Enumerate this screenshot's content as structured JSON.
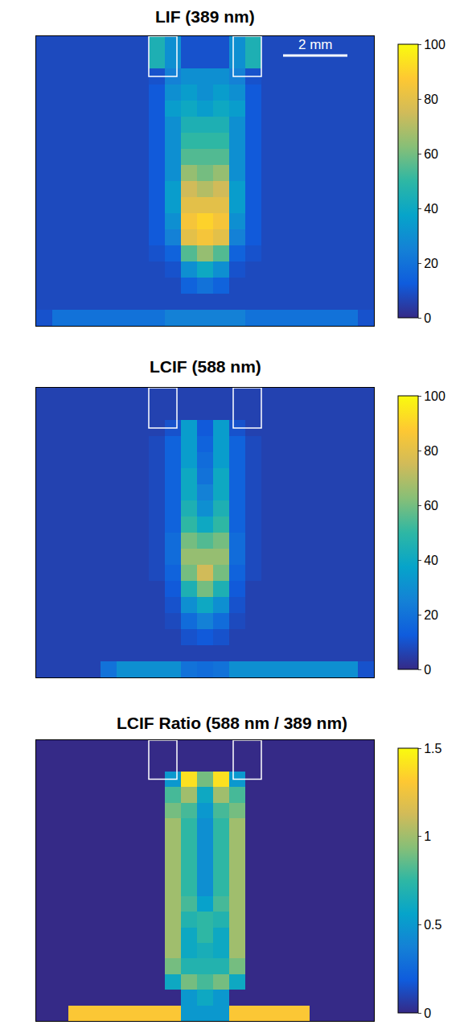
{
  "chart_data": [
    {
      "type": "heatmap",
      "title": "LIF (389 nm)",
      "xlim": [
        0,
        10.5
      ],
      "ylim": [
        0,
        9
      ],
      "tick_labels": false,
      "scale_bar": {
        "label": "2 mm",
        "length": 2
      },
      "colorbar": {
        "range": [
          0,
          100
        ],
        "ticks": [
          0,
          20,
          40,
          60,
          80,
          100
        ]
      },
      "cells": [
        [
          8,
          8,
          8,
          8,
          8,
          8,
          8,
          45,
          30,
          10,
          10,
          10,
          30,
          45,
          8,
          8,
          8,
          8,
          8,
          8,
          8
        ],
        [
          8,
          8,
          8,
          8,
          8,
          8,
          8,
          45,
          30,
          10,
          10,
          10,
          30,
          45,
          8,
          8,
          8,
          8,
          8,
          8,
          8
        ],
        [
          8,
          8,
          8,
          8,
          8,
          8,
          8,
          10,
          25,
          30,
          30,
          30,
          25,
          10,
          8,
          8,
          8,
          8,
          8,
          8,
          8
        ],
        [
          8,
          8,
          8,
          8,
          8,
          8,
          8,
          12,
          30,
          35,
          30,
          35,
          30,
          12,
          8,
          8,
          8,
          8,
          8,
          8,
          8
        ],
        [
          8,
          8,
          8,
          8,
          8,
          8,
          8,
          12,
          35,
          40,
          35,
          40,
          35,
          12,
          8,
          8,
          8,
          8,
          8,
          8,
          8
        ],
        [
          8,
          8,
          8,
          8,
          8,
          8,
          8,
          12,
          30,
          45,
          45,
          45,
          30,
          12,
          8,
          8,
          8,
          8,
          8,
          8,
          8
        ],
        [
          8,
          8,
          8,
          8,
          8,
          8,
          8,
          12,
          30,
          50,
          50,
          50,
          30,
          12,
          8,
          8,
          8,
          8,
          8,
          8,
          8
        ],
        [
          8,
          8,
          8,
          8,
          8,
          8,
          8,
          12,
          30,
          55,
          55,
          55,
          30,
          12,
          8,
          8,
          8,
          8,
          8,
          8,
          8
        ],
        [
          8,
          8,
          8,
          8,
          8,
          8,
          8,
          12,
          30,
          65,
          60,
          65,
          30,
          12,
          8,
          8,
          8,
          8,
          8,
          8,
          8
        ],
        [
          8,
          8,
          8,
          8,
          8,
          8,
          8,
          12,
          35,
          75,
          70,
          75,
          35,
          12,
          8,
          8,
          8,
          8,
          8,
          8,
          8
        ],
        [
          8,
          8,
          8,
          8,
          8,
          8,
          8,
          12,
          35,
          80,
          80,
          80,
          35,
          12,
          8,
          8,
          8,
          8,
          8,
          8,
          8
        ],
        [
          8,
          8,
          8,
          8,
          8,
          8,
          8,
          12,
          30,
          85,
          90,
          85,
          30,
          12,
          8,
          8,
          8,
          8,
          8,
          8,
          8
        ],
        [
          8,
          8,
          8,
          8,
          8,
          8,
          8,
          12,
          25,
          80,
          85,
          80,
          25,
          12,
          8,
          8,
          8,
          8,
          8,
          8,
          8
        ],
        [
          8,
          8,
          8,
          8,
          8,
          8,
          8,
          10,
          15,
          55,
          65,
          55,
          15,
          10,
          8,
          8,
          8,
          8,
          8,
          8,
          8
        ],
        [
          8,
          8,
          8,
          8,
          8,
          8,
          8,
          8,
          10,
          30,
          40,
          30,
          10,
          8,
          8,
          8,
          8,
          8,
          8,
          8,
          8
        ],
        [
          8,
          8,
          8,
          8,
          8,
          8,
          8,
          8,
          8,
          15,
          20,
          15,
          8,
          8,
          8,
          8,
          8,
          8,
          8,
          8,
          8
        ],
        [
          8,
          8,
          8,
          8,
          8,
          8,
          8,
          8,
          8,
          8,
          8,
          8,
          8,
          8,
          8,
          8,
          8,
          8,
          8,
          8,
          8
        ],
        [
          10,
          20,
          20,
          20,
          20,
          20,
          20,
          20,
          25,
          25,
          25,
          25,
          25,
          20,
          20,
          20,
          20,
          20,
          20,
          20,
          10
        ]
      ]
    },
    {
      "type": "heatmap",
      "title": "LCIF (588 nm)",
      "xlim": [
        0,
        10.5
      ],
      "ylim": [
        0,
        9
      ],
      "tick_labels": false,
      "colorbar": {
        "range": [
          0,
          100
        ],
        "ticks": [
          0,
          20,
          40,
          60,
          80,
          100
        ]
      },
      "cells": [
        [
          6,
          6,
          6,
          6,
          6,
          6,
          6,
          6,
          6,
          6,
          6,
          6,
          6,
          6,
          6,
          6,
          6,
          6,
          6,
          6,
          6
        ],
        [
          6,
          6,
          6,
          6,
          6,
          6,
          6,
          6,
          6,
          6,
          6,
          6,
          6,
          6,
          6,
          6,
          6,
          6,
          6,
          6,
          6
        ],
        [
          6,
          6,
          6,
          6,
          6,
          6,
          6,
          6,
          10,
          35,
          12,
          35,
          10,
          6,
          6,
          6,
          6,
          6,
          6,
          6,
          6
        ],
        [
          6,
          6,
          6,
          6,
          6,
          6,
          6,
          8,
          15,
          35,
          15,
          35,
          15,
          8,
          6,
          6,
          6,
          6,
          6,
          6,
          6
        ],
        [
          6,
          6,
          6,
          6,
          6,
          6,
          6,
          8,
          15,
          35,
          18,
          35,
          15,
          8,
          6,
          6,
          6,
          6,
          6,
          6,
          6
        ],
        [
          6,
          6,
          6,
          6,
          6,
          6,
          6,
          8,
          15,
          40,
          20,
          40,
          15,
          8,
          6,
          6,
          6,
          6,
          6,
          6,
          6
        ],
        [
          6,
          6,
          6,
          6,
          6,
          6,
          6,
          8,
          15,
          40,
          25,
          40,
          15,
          8,
          6,
          6,
          6,
          6,
          6,
          6,
          6
        ],
        [
          6,
          6,
          6,
          6,
          6,
          6,
          6,
          8,
          15,
          45,
          30,
          45,
          15,
          8,
          6,
          6,
          6,
          6,
          6,
          6,
          6
        ],
        [
          6,
          6,
          6,
          6,
          6,
          6,
          6,
          8,
          15,
          50,
          40,
          50,
          15,
          8,
          6,
          6,
          6,
          6,
          6,
          6,
          6
        ],
        [
          6,
          6,
          6,
          6,
          6,
          6,
          6,
          8,
          18,
          60,
          55,
          60,
          18,
          8,
          6,
          6,
          6,
          6,
          6,
          6,
          6
        ],
        [
          6,
          6,
          6,
          6,
          6,
          6,
          6,
          8,
          18,
          65,
          65,
          65,
          18,
          8,
          6,
          6,
          6,
          6,
          6,
          6,
          6
        ],
        [
          6,
          6,
          6,
          6,
          6,
          6,
          6,
          8,
          15,
          60,
          75,
          60,
          15,
          8,
          6,
          6,
          6,
          6,
          6,
          6,
          6
        ],
        [
          6,
          6,
          6,
          6,
          6,
          6,
          6,
          6,
          12,
          45,
          60,
          45,
          12,
          6,
          6,
          6,
          6,
          6,
          6,
          6,
          6
        ],
        [
          6,
          6,
          6,
          6,
          6,
          6,
          6,
          6,
          10,
          30,
          40,
          30,
          10,
          6,
          6,
          6,
          6,
          6,
          6,
          6,
          6
        ],
        [
          6,
          6,
          6,
          6,
          6,
          6,
          6,
          6,
          8,
          18,
          25,
          18,
          8,
          6,
          6,
          6,
          6,
          6,
          6,
          6,
          6
        ],
        [
          6,
          6,
          6,
          6,
          6,
          6,
          6,
          6,
          6,
          10,
          12,
          10,
          6,
          6,
          6,
          6,
          6,
          6,
          6,
          6,
          6
        ],
        [
          6,
          6,
          6,
          6,
          6,
          6,
          6,
          6,
          6,
          6,
          6,
          6,
          6,
          6,
          6,
          6,
          6,
          6,
          6,
          6,
          6
        ],
        [
          6,
          6,
          6,
          6,
          20,
          30,
          30,
          30,
          30,
          20,
          18,
          20,
          30,
          30,
          30,
          30,
          30,
          30,
          30,
          30,
          10
        ]
      ]
    },
    {
      "type": "heatmap",
      "title": "LCIF Ratio (588 nm / 389 nm)",
      "xlim": [
        0,
        10.5
      ],
      "ylim": [
        0,
        9
      ],
      "tick_labels": false,
      "colorbar": {
        "range": [
          0,
          1.5
        ],
        "ticks": [
          0,
          0.5,
          1,
          1.5
        ]
      },
      "cells": [
        [
          0,
          0,
          0,
          0,
          0,
          0,
          0,
          0,
          0,
          0,
          0,
          0,
          0,
          0,
          0,
          0,
          0,
          0,
          0,
          0,
          0
        ],
        [
          0,
          0,
          0,
          0,
          0,
          0,
          0,
          0,
          0,
          0,
          0,
          0,
          0,
          0,
          0,
          0,
          0,
          0,
          0,
          0,
          0
        ],
        [
          0,
          0,
          0,
          0,
          0,
          0,
          0,
          0,
          0.5,
          1.4,
          0.9,
          1.4,
          0.5,
          0,
          0,
          0,
          0,
          0,
          0,
          0,
          0
        ],
        [
          0,
          0,
          0,
          0,
          0,
          0,
          0,
          0,
          0.8,
          1.0,
          0.6,
          1.0,
          0.8,
          0,
          0,
          0,
          0,
          0,
          0,
          0,
          0
        ],
        [
          0,
          0,
          0,
          0,
          0,
          0,
          0,
          0,
          0.9,
          0.8,
          0.5,
          0.8,
          0.9,
          0,
          0,
          0,
          0,
          0,
          0,
          0,
          0
        ],
        [
          0,
          0,
          0,
          0,
          0,
          0,
          0,
          0,
          1.0,
          0.75,
          0.45,
          0.75,
          1.0,
          0,
          0,
          0,
          0,
          0,
          0,
          0,
          0
        ],
        [
          0,
          0,
          0,
          0,
          0,
          0,
          0,
          0,
          1.0,
          0.75,
          0.45,
          0.75,
          1.0,
          0,
          0,
          0,
          0,
          0,
          0,
          0,
          0
        ],
        [
          0,
          0,
          0,
          0,
          0,
          0,
          0,
          0,
          1.0,
          0.75,
          0.45,
          0.75,
          1.0,
          0,
          0,
          0,
          0,
          0,
          0,
          0,
          0
        ],
        [
          0,
          0,
          0,
          0,
          0,
          0,
          0,
          0,
          1.0,
          0.75,
          0.45,
          0.75,
          1.0,
          0,
          0,
          0,
          0,
          0,
          0,
          0,
          0
        ],
        [
          0,
          0,
          0,
          0,
          0,
          0,
          0,
          0,
          1.0,
          0.75,
          0.45,
          0.75,
          1.0,
          0,
          0,
          0,
          0,
          0,
          0,
          0,
          0
        ],
        [
          0,
          0,
          0,
          0,
          0,
          0,
          0,
          0,
          1.0,
          0.8,
          0.55,
          0.8,
          1.0,
          0,
          0,
          0,
          0,
          0,
          0,
          0,
          0
        ],
        [
          0,
          0,
          0,
          0,
          0,
          0,
          0,
          0,
          1.0,
          0.7,
          0.75,
          0.7,
          1.0,
          0,
          0,
          0,
          0,
          0,
          0,
          0,
          0
        ],
        [
          0,
          0,
          0,
          0,
          0,
          0,
          0,
          0,
          1.0,
          0.6,
          0.75,
          0.6,
          1.0,
          0,
          0,
          0,
          0,
          0,
          0,
          0,
          0
        ],
        [
          0,
          0,
          0,
          0,
          0,
          0,
          0,
          0,
          1.0,
          0.6,
          0.65,
          0.6,
          1.0,
          0,
          0,
          0,
          0,
          0,
          0,
          0,
          0
        ],
        [
          0,
          0,
          0,
          0,
          0,
          0,
          0,
          0,
          0.9,
          0.7,
          0.7,
          0.7,
          0.9,
          0,
          0,
          0,
          0,
          0,
          0,
          0,
          0
        ],
        [
          0,
          0,
          0,
          0,
          0,
          0,
          0,
          0,
          0.6,
          0.9,
          0.8,
          0.9,
          0.6,
          0,
          0,
          0,
          0,
          0,
          0,
          0,
          0
        ],
        [
          0,
          0,
          0,
          0,
          0,
          0,
          0,
          0,
          0,
          0.5,
          0.6,
          0.5,
          0,
          0,
          0,
          0,
          0,
          0,
          0,
          0,
          0
        ],
        [
          0,
          0,
          1.3,
          1.3,
          1.3,
          1.3,
          1.3,
          1.3,
          1.3,
          0.5,
          0.5,
          0.5,
          1.3,
          1.3,
          1.3,
          1.3,
          1.3,
          0,
          0,
          0,
          0
        ]
      ]
    }
  ]
}
